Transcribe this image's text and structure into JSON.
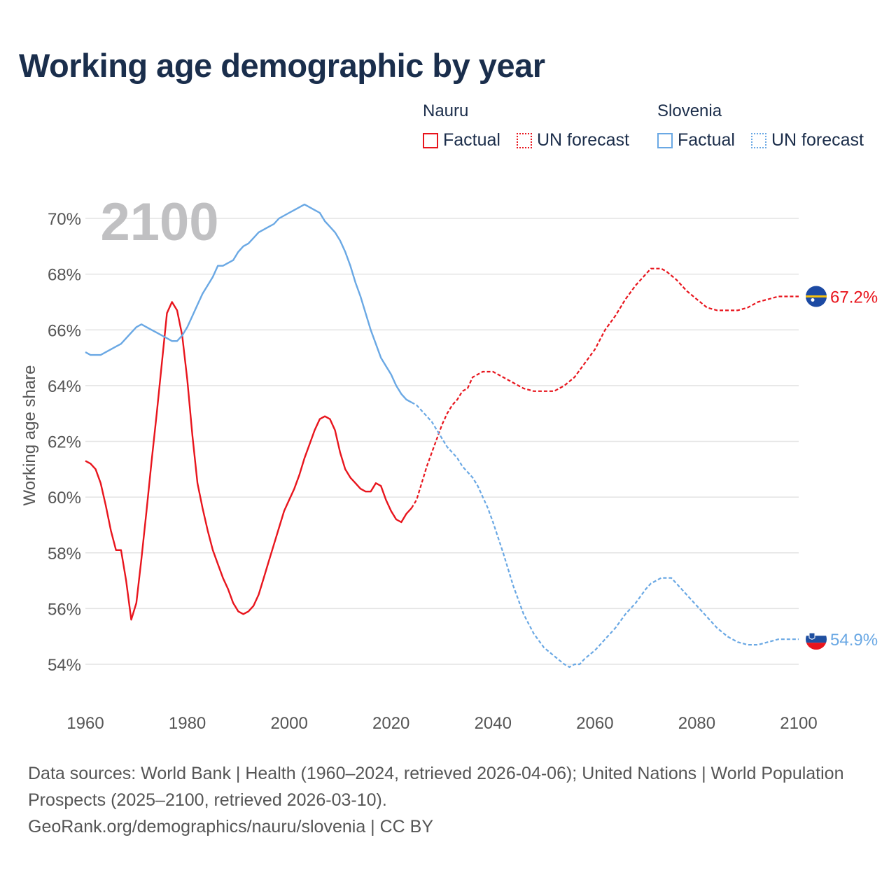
{
  "title": "Working age demographic by year",
  "legend": {
    "groups": [
      {
        "name": "Nauru",
        "color": "#e8151d",
        "factual_label": "Factual",
        "forecast_label": "UN forecast"
      },
      {
        "name": "Slovenia",
        "color": "#6aa8e4",
        "factual_label": "Factual",
        "forecast_label": "UN forecast"
      }
    ]
  },
  "footer": {
    "sources": "Data sources: World Bank | Health (1960–2024, retrieved 2026-04-06); United Nations | World Population Prospects (2025–2100, retrieved 2026-03-10).",
    "link": "GeoRank.org/demographics/nauru/slovenia | CC BY"
  },
  "chart_data": {
    "type": "line",
    "title": "Working age demographic by year",
    "year_label": "2100",
    "xlabel": "",
    "ylabel": "Working age share",
    "xlim": [
      1960,
      2100
    ],
    "ylim": [
      53.2,
      71.0
    ],
    "x_ticks": [
      1960,
      1980,
      2000,
      2020,
      2040,
      2060,
      2080,
      2100
    ],
    "y_ticks": [
      54,
      56,
      58,
      60,
      62,
      64,
      66,
      68,
      70
    ],
    "y_tick_labels": [
      "54%",
      "56%",
      "58%",
      "60%",
      "62%",
      "64%",
      "66%",
      "68%",
      "70%"
    ],
    "grid": true,
    "series": [
      {
        "name": "Nauru",
        "color": "#e8151d",
        "end_label": "67.2%",
        "end_value": 67.2,
        "factual": [
          [
            1960,
            61.3
          ],
          [
            1961,
            61.2
          ],
          [
            1962,
            61.0
          ],
          [
            1963,
            60.5
          ],
          [
            1964,
            59.7
          ],
          [
            1965,
            58.8
          ],
          [
            1966,
            58.1
          ],
          [
            1967,
            58.1
          ],
          [
            1968,
            57.0
          ],
          [
            1969,
            55.6
          ],
          [
            1970,
            56.2
          ],
          [
            1971,
            57.8
          ],
          [
            1972,
            59.5
          ],
          [
            1973,
            61.3
          ],
          [
            1974,
            63.0
          ],
          [
            1975,
            64.8
          ],
          [
            1976,
            66.6
          ],
          [
            1977,
            67.0
          ],
          [
            1978,
            66.7
          ],
          [
            1979,
            65.8
          ],
          [
            1980,
            64.2
          ],
          [
            1981,
            62.2
          ],
          [
            1982,
            60.5
          ],
          [
            1983,
            59.6
          ],
          [
            1984,
            58.8
          ],
          [
            1985,
            58.1
          ],
          [
            1986,
            57.6
          ],
          [
            1987,
            57.1
          ],
          [
            1988,
            56.7
          ],
          [
            1989,
            56.2
          ],
          [
            1990,
            55.9
          ],
          [
            1991,
            55.8
          ],
          [
            1992,
            55.9
          ],
          [
            1993,
            56.1
          ],
          [
            1994,
            56.5
          ],
          [
            1995,
            57.1
          ],
          [
            1996,
            57.7
          ],
          [
            1997,
            58.3
          ],
          [
            1998,
            58.9
          ],
          [
            1999,
            59.5
          ],
          [
            2000,
            59.9
          ],
          [
            2001,
            60.3
          ],
          [
            2002,
            60.8
          ],
          [
            2003,
            61.4
          ],
          [
            2004,
            61.9
          ],
          [
            2005,
            62.4
          ],
          [
            2006,
            62.8
          ],
          [
            2007,
            62.9
          ],
          [
            2008,
            62.8
          ],
          [
            2009,
            62.4
          ],
          [
            2010,
            61.6
          ],
          [
            2011,
            61.0
          ],
          [
            2012,
            60.7
          ],
          [
            2013,
            60.5
          ],
          [
            2014,
            60.3
          ],
          [
            2015,
            60.2
          ],
          [
            2016,
            60.2
          ],
          [
            2017,
            60.5
          ],
          [
            2018,
            60.4
          ],
          [
            2019,
            59.9
          ],
          [
            2020,
            59.5
          ],
          [
            2021,
            59.2
          ],
          [
            2022,
            59.1
          ],
          [
            2023,
            59.4
          ],
          [
            2024,
            59.6
          ]
        ],
        "forecast": [
          [
            2024,
            59.6
          ],
          [
            2025,
            59.9
          ],
          [
            2026,
            60.5
          ],
          [
            2027,
            61.1
          ],
          [
            2028,
            61.6
          ],
          [
            2029,
            62.1
          ],
          [
            2030,
            62.6
          ],
          [
            2031,
            63.0
          ],
          [
            2032,
            63.3
          ],
          [
            2033,
            63.5
          ],
          [
            2034,
            63.8
          ],
          [
            2035,
            63.9
          ],
          [
            2036,
            64.3
          ],
          [
            2037,
            64.4
          ],
          [
            2038,
            64.5
          ],
          [
            2039,
            64.5
          ],
          [
            2040,
            64.5
          ],
          [
            2042,
            64.3
          ],
          [
            2044,
            64.1
          ],
          [
            2046,
            63.9
          ],
          [
            2048,
            63.8
          ],
          [
            2050,
            63.8
          ],
          [
            2052,
            63.8
          ],
          [
            2054,
            64.0
          ],
          [
            2056,
            64.3
          ],
          [
            2058,
            64.8
          ],
          [
            2060,
            65.3
          ],
          [
            2062,
            66.0
          ],
          [
            2064,
            66.5
          ],
          [
            2066,
            67.1
          ],
          [
            2068,
            67.6
          ],
          [
            2070,
            68.0
          ],
          [
            2071,
            68.2
          ],
          [
            2072,
            68.2
          ],
          [
            2073,
            68.2
          ],
          [
            2074,
            68.1
          ],
          [
            2076,
            67.8
          ],
          [
            2078,
            67.4
          ],
          [
            2080,
            67.1
          ],
          [
            2082,
            66.8
          ],
          [
            2084,
            66.7
          ],
          [
            2086,
            66.7
          ],
          [
            2088,
            66.7
          ],
          [
            2090,
            66.8
          ],
          [
            2092,
            67.0
          ],
          [
            2094,
            67.1
          ],
          [
            2096,
            67.2
          ],
          [
            2098,
            67.2
          ],
          [
            2100,
            67.2
          ]
        ]
      },
      {
        "name": "Slovenia",
        "color": "#6aa8e4",
        "end_label": "54.9%",
        "end_value": 54.9,
        "factual": [
          [
            1960,
            65.2
          ],
          [
            1961,
            65.1
          ],
          [
            1962,
            65.1
          ],
          [
            1963,
            65.1
          ],
          [
            1964,
            65.2
          ],
          [
            1965,
            65.3
          ],
          [
            1966,
            65.4
          ],
          [
            1967,
            65.5
          ],
          [
            1968,
            65.7
          ],
          [
            1969,
            65.9
          ],
          [
            1970,
            66.1
          ],
          [
            1971,
            66.2
          ],
          [
            1972,
            66.1
          ],
          [
            1973,
            66.0
          ],
          [
            1974,
            65.9
          ],
          [
            1975,
            65.8
          ],
          [
            1976,
            65.7
          ],
          [
            1977,
            65.6
          ],
          [
            1978,
            65.6
          ],
          [
            1979,
            65.8
          ],
          [
            1980,
            66.1
          ],
          [
            1981,
            66.5
          ],
          [
            1982,
            66.9
          ],
          [
            1983,
            67.3
          ],
          [
            1984,
            67.6
          ],
          [
            1985,
            67.9
          ],
          [
            1986,
            68.3
          ],
          [
            1987,
            68.3
          ],
          [
            1988,
            68.4
          ],
          [
            1989,
            68.5
          ],
          [
            1990,
            68.8
          ],
          [
            1991,
            69.0
          ],
          [
            1992,
            69.1
          ],
          [
            1993,
            69.3
          ],
          [
            1994,
            69.5
          ],
          [
            1995,
            69.6
          ],
          [
            1996,
            69.7
          ],
          [
            1997,
            69.8
          ],
          [
            1998,
            70.0
          ],
          [
            1999,
            70.1
          ],
          [
            2000,
            70.2
          ],
          [
            2001,
            70.3
          ],
          [
            2002,
            70.4
          ],
          [
            2003,
            70.5
          ],
          [
            2004,
            70.4
          ],
          [
            2005,
            70.3
          ],
          [
            2006,
            70.2
          ],
          [
            2007,
            69.9
          ],
          [
            2008,
            69.7
          ],
          [
            2009,
            69.5
          ],
          [
            2010,
            69.2
          ],
          [
            2011,
            68.8
          ],
          [
            2012,
            68.3
          ],
          [
            2013,
            67.7
          ],
          [
            2014,
            67.2
          ],
          [
            2015,
            66.6
          ],
          [
            2016,
            66.0
          ],
          [
            2017,
            65.5
          ],
          [
            2018,
            65.0
          ],
          [
            2019,
            64.7
          ],
          [
            2020,
            64.4
          ],
          [
            2021,
            64.0
          ],
          [
            2022,
            63.7
          ],
          [
            2023,
            63.5
          ],
          [
            2024,
            63.4
          ]
        ],
        "forecast": [
          [
            2024,
            63.4
          ],
          [
            2025,
            63.3
          ],
          [
            2026,
            63.1
          ],
          [
            2027,
            62.9
          ],
          [
            2028,
            62.7
          ],
          [
            2029,
            62.4
          ],
          [
            2030,
            62.1
          ],
          [
            2031,
            61.8
          ],
          [
            2032,
            61.6
          ],
          [
            2033,
            61.4
          ],
          [
            2034,
            61.1
          ],
          [
            2035,
            60.9
          ],
          [
            2036,
            60.7
          ],
          [
            2037,
            60.4
          ],
          [
            2038,
            60.0
          ],
          [
            2039,
            59.6
          ],
          [
            2040,
            59.1
          ],
          [
            2042,
            58.0
          ],
          [
            2044,
            56.8
          ],
          [
            2046,
            55.8
          ],
          [
            2048,
            55.1
          ],
          [
            2050,
            54.6
          ],
          [
            2052,
            54.3
          ],
          [
            2054,
            54.0
          ],
          [
            2055,
            53.9
          ],
          [
            2056,
            54.0
          ],
          [
            2057,
            54.0
          ],
          [
            2058,
            54.2
          ],
          [
            2060,
            54.5
          ],
          [
            2062,
            54.9
          ],
          [
            2064,
            55.3
          ],
          [
            2066,
            55.8
          ],
          [
            2068,
            56.2
          ],
          [
            2070,
            56.7
          ],
          [
            2071,
            56.9
          ],
          [
            2072,
            57.0
          ],
          [
            2073,
            57.1
          ],
          [
            2074,
            57.1
          ],
          [
            2075,
            57.1
          ],
          [
            2076,
            56.9
          ],
          [
            2078,
            56.5
          ],
          [
            2080,
            56.1
          ],
          [
            2082,
            55.7
          ],
          [
            2084,
            55.3
          ],
          [
            2086,
            55.0
          ],
          [
            2088,
            54.8
          ],
          [
            2090,
            54.7
          ],
          [
            2092,
            54.7
          ],
          [
            2094,
            54.8
          ],
          [
            2096,
            54.9
          ],
          [
            2098,
            54.9
          ],
          [
            2100,
            54.9
          ]
        ]
      }
    ]
  }
}
